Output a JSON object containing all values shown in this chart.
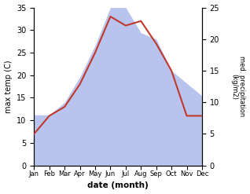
{
  "months": [
    "Jan",
    "Feb",
    "Mar",
    "Apr",
    "May",
    "Jun",
    "Jul",
    "Aug",
    "Sep",
    "Oct",
    "Nov",
    "Dec"
  ],
  "temperature": [
    7,
    11,
    13,
    18,
    25,
    33,
    31,
    32,
    27,
    21,
    11,
    11
  ],
  "precipitation": [
    8,
    8,
    10,
    14,
    19,
    25,
    25,
    21,
    20,
    15,
    13,
    11
  ],
  "temp_color": "#c0392b",
  "precip_color_fill": "#b8c4ee",
  "ylabel_left": "max temp (C)",
  "ylabel_right": "med. precipitation\n(kg/m2)",
  "xlabel": "date (month)",
  "ylim_left": [
    0,
    35
  ],
  "ylim_right": [
    0,
    25
  ],
  "yticks_left": [
    0,
    5,
    10,
    15,
    20,
    25,
    30,
    35
  ],
  "yticks_right": [
    0,
    5,
    10,
    15,
    20,
    25
  ],
  "background_color": "#ffffff",
  "figsize": [
    3.18,
    2.47
  ],
  "dpi": 100
}
